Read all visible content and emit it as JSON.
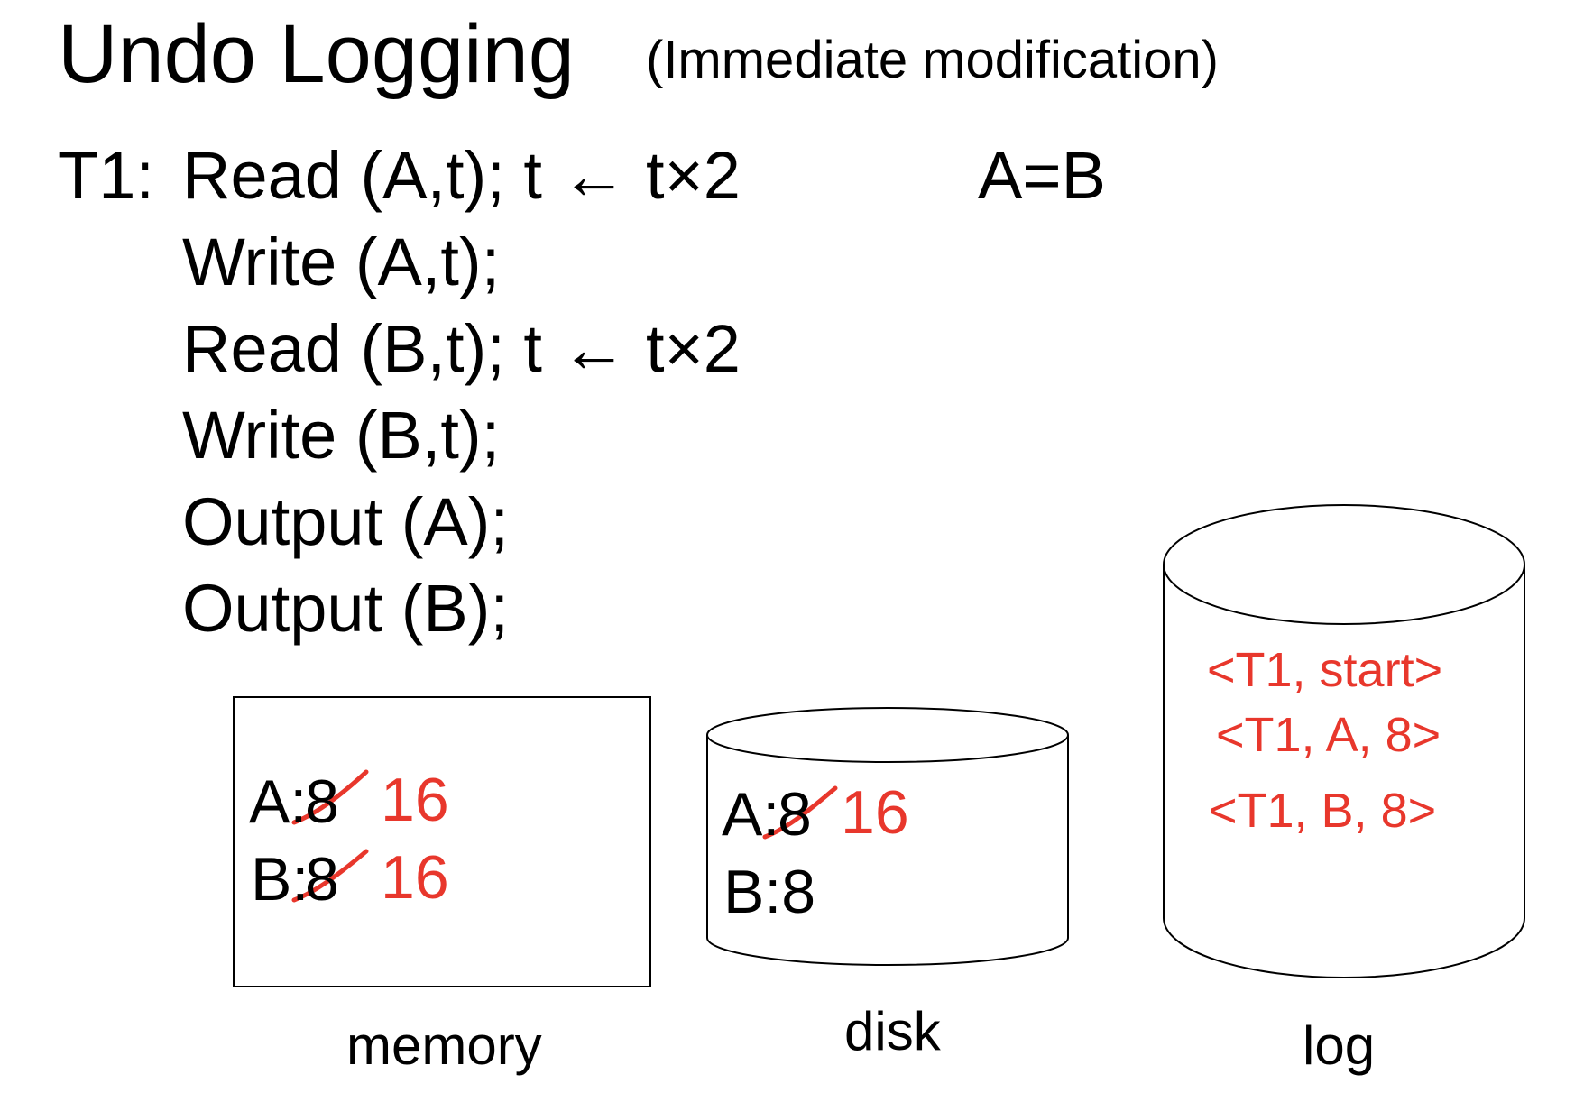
{
  "slide": {
    "title": "Undo Logging",
    "subtitle": "(Immediate modification)"
  },
  "transaction": {
    "label": "T1:",
    "steps": [
      "Read (A,t);  t ← t×2",
      "Write (A,t);",
      "Read (B,t);  t ← t×2",
      "Write (B,t);",
      "Output (A);",
      "Output (B);"
    ],
    "constraint": "A=B"
  },
  "memory": {
    "caption": "memory",
    "a_label": "A:",
    "a_old": "8",
    "a_new": "16",
    "b_label": "B:",
    "b_old": "8",
    "b_new": "16"
  },
  "disk": {
    "caption": "disk",
    "a_label": "A:",
    "a_old": "8",
    "a_new": "16",
    "b_value": "B:8"
  },
  "log": {
    "caption": "log",
    "entries": [
      "<T1, start>",
      "<T1, A, 8>",
      "<T1, B, 8>"
    ]
  },
  "colors": {
    "accent": "#e8372c",
    "text": "#000000"
  }
}
